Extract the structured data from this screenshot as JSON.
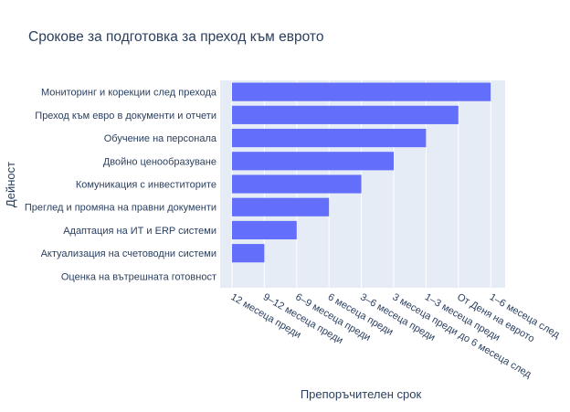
{
  "chart_data": {
    "type": "bar",
    "orientation": "horizontal",
    "title": "Срокове за подготовка за преход към еврото",
    "xlabel": "Препоръчителен срок",
    "ylabel": "Дейност",
    "x_categories": [
      "12 месеца преди",
      "9–12 месеца преди",
      "6–9 месеца преди",
      "6 месеца преди",
      "3–6 месеца преди",
      "3 месеца преди до 6 месеца след",
      "1–3 месеца преди",
      "От Деня на еврото",
      "1–6 месеца след"
    ],
    "y_categories": [
      "Оценка на вътрешната готовност",
      "Актуализация на счетоводни системи",
      "Адаптация на ИТ и ERP системи",
      "Преглед и промяна на правни документи",
      "Комуникация с инвеститорите",
      "Двойно ценообразуване",
      "Обучение на персонала",
      "Преход към евро в документи и отчети",
      "Мониторинг и корекции след прехода"
    ],
    "values": [
      "12 месеца преди",
      "9–12 месеца преди",
      "6–9 месеца преди",
      "6 месеца преди",
      "3–6 месеца преди",
      "3 месеца преди до 6 месеца след",
      "1–3 месеца преди",
      "От Деня на еврото",
      "1–6 месеца след"
    ],
    "bar_color": "#636efa",
    "plot_bg": "#e5ecf6",
    "grid": true,
    "legend": "none"
  }
}
